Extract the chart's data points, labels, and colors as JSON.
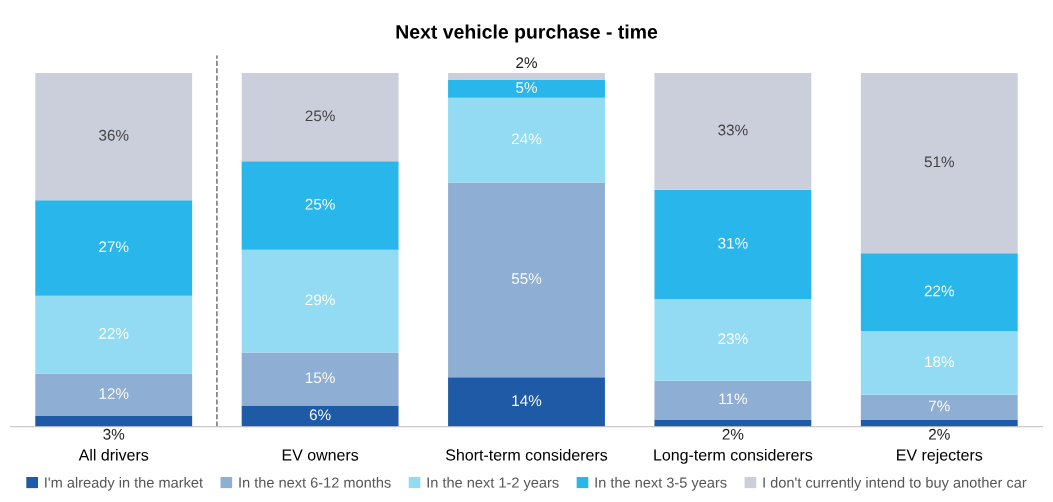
{
  "chart_data": {
    "type": "bar",
    "title": "Next vehicle purchase - time",
    "stacked": true,
    "categories": [
      "All drivers",
      "EV owners",
      "Short-term considerers",
      "Long-term considerers",
      "EV rejecters"
    ],
    "series": [
      {
        "name": "I'm already in the market",
        "color": "#1f5aa6",
        "values": [
          3,
          6,
          14,
          2,
          2
        ],
        "value_labels": [
          "3%",
          "6%",
          "14%",
          "2%",
          "2%"
        ]
      },
      {
        "name": "In the next 6-12 months",
        "color": "#8eaed3",
        "values": [
          12,
          15,
          55,
          11,
          7
        ],
        "value_labels": [
          "12%",
          "15%",
          "55%",
          "11%",
          "7%"
        ]
      },
      {
        "name": "In the next 1-2 years",
        "color": "#92dbf3",
        "values": [
          22,
          29,
          24,
          23,
          18
        ],
        "value_labels": [
          "22%",
          "29%",
          "24%",
          "23%",
          "18%"
        ]
      },
      {
        "name": "In the next 3-5 years",
        "color": "#29b6ea",
        "values": [
          27,
          25,
          5,
          31,
          22
        ],
        "value_labels": [
          "27%",
          "25%",
          "5%",
          "31%",
          "22%"
        ]
      },
      {
        "name": "I don't currently intend to buy another car",
        "color": "#cbcfdb",
        "values": [
          36,
          25,
          2,
          33,
          51
        ],
        "value_labels": [
          "36%",
          "25%",
          "2%",
          "33%",
          "51%"
        ]
      }
    ],
    "legend": "bottom",
    "grid": false
  }
}
